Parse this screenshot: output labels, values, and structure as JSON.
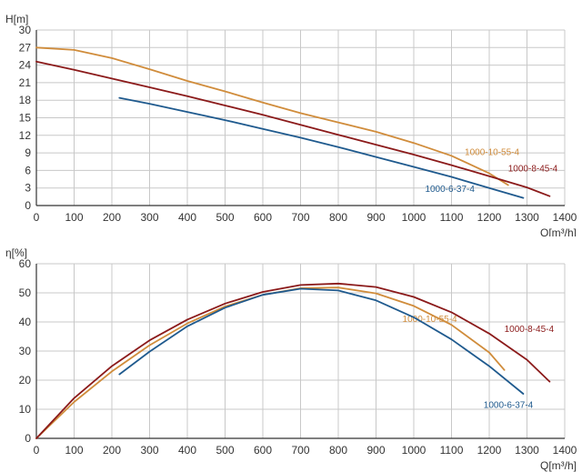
{
  "chart_data": [
    {
      "type": "line",
      "ylabel": "H[m]",
      "xlabel": "Q[m³/h]",
      "xlim": [
        0,
        1400
      ],
      "ylim": [
        0,
        30
      ],
      "xticks": [
        0,
        100,
        200,
        300,
        400,
        500,
        600,
        700,
        800,
        900,
        1000,
        1100,
        1200,
        1300,
        1400
      ],
      "yticks": [
        0,
        3,
        6,
        9,
        12,
        15,
        18,
        21,
        24,
        27,
        30
      ],
      "grid": true,
      "series": [
        {
          "name": "1000-10-55-4",
          "color": "#d08c3b",
          "label_at": [
            1135,
            8.6
          ],
          "points": [
            [
              0,
              27
            ],
            [
              100,
              26.6
            ],
            [
              200,
              25.2
            ],
            [
              300,
              23.3
            ],
            [
              400,
              21.3
            ],
            [
              500,
              19.5
            ],
            [
              600,
              17.6
            ],
            [
              700,
              15.8
            ],
            [
              800,
              14.2
            ],
            [
              900,
              12.6
            ],
            [
              1000,
              10.7
            ],
            [
              1100,
              8.5
            ],
            [
              1200,
              5.5
            ],
            [
              1250,
              3.5
            ]
          ]
        },
        {
          "name": "1000-8-45-4",
          "color": "#8b1a1a",
          "label_at": [
            1250,
            5.8
          ],
          "points": [
            [
              0,
              24.6
            ],
            [
              100,
              23.2
            ],
            [
              200,
              21.7
            ],
            [
              300,
              20.2
            ],
            [
              400,
              18.7
            ],
            [
              500,
              17.1
            ],
            [
              600,
              15.5
            ],
            [
              700,
              13.8
            ],
            [
              800,
              12.1
            ],
            [
              900,
              10.4
            ],
            [
              1000,
              8.7
            ],
            [
              1100,
              6.9
            ],
            [
              1200,
              5.0
            ],
            [
              1300,
              3.1
            ],
            [
              1360,
              1.6
            ]
          ]
        },
        {
          "name": "1000-6-37-4",
          "color": "#1f5a8e",
          "label_at": [
            1030,
            2.3
          ],
          "points": [
            [
              220,
              18.4
            ],
            [
              300,
              17.4
            ],
            [
              400,
              16.0
            ],
            [
              500,
              14.6
            ],
            [
              600,
              13.1
            ],
            [
              700,
              11.6
            ],
            [
              800,
              10.0
            ],
            [
              900,
              8.3
            ],
            [
              1000,
              6.6
            ],
            [
              1100,
              4.9
            ],
            [
              1200,
              3.0
            ],
            [
              1290,
              1.3
            ]
          ]
        }
      ]
    },
    {
      "type": "line",
      "ylabel": "η[%]",
      "xlabel": "Q[m³/h]",
      "xlim": [
        0,
        1400
      ],
      "ylim": [
        0,
        60
      ],
      "xticks": [
        0,
        100,
        200,
        300,
        400,
        500,
        600,
        700,
        800,
        900,
        1000,
        1100,
        1200,
        1300,
        1400
      ],
      "yticks": [
        0,
        10,
        20,
        30,
        40,
        50,
        60
      ],
      "grid": true,
      "series": [
        {
          "name": "1000-10-55-4",
          "color": "#d08c3b",
          "label_at": [
            970,
            40
          ],
          "points": [
            [
              0,
              0
            ],
            [
              100,
              12.5
            ],
            [
              200,
              23
            ],
            [
              300,
              32
            ],
            [
              400,
              39.5
            ],
            [
              500,
              45.3
            ],
            [
              600,
              49.3
            ],
            [
              700,
              51.6
            ],
            [
              800,
              51.8
            ],
            [
              900,
              49.8
            ],
            [
              1000,
              45.5
            ],
            [
              1100,
              39
            ],
            [
              1200,
              29.5
            ],
            [
              1240,
              23.5
            ]
          ]
        },
        {
          "name": "1000-8-45-4",
          "color": "#8b1a1a",
          "label_at": [
            1240,
            36.5
          ],
          "points": [
            [
              0,
              0
            ],
            [
              100,
              13.8
            ],
            [
              200,
              24.8
            ],
            [
              300,
              33.7
            ],
            [
              400,
              40.8
            ],
            [
              500,
              46.3
            ],
            [
              600,
              50.3
            ],
            [
              700,
              52.7
            ],
            [
              800,
              53.2
            ],
            [
              900,
              52.0
            ],
            [
              1000,
              48.6
            ],
            [
              1100,
              43.3
            ],
            [
              1200,
              36.0
            ],
            [
              1300,
              27.0
            ],
            [
              1360,
              19.5
            ]
          ]
        },
        {
          "name": "1000-6-37-4",
          "color": "#1f5a8e",
          "label_at": [
            1185,
            10.5
          ],
          "points": [
            [
              220,
              22
            ],
            [
              300,
              29.8
            ],
            [
              400,
              38.5
            ],
            [
              500,
              44.9
            ],
            [
              600,
              49.3
            ],
            [
              700,
              51.4
            ],
            [
              800,
              50.8
            ],
            [
              900,
              47.4
            ],
            [
              1000,
              41.6
            ],
            [
              1100,
              34.0
            ],
            [
              1200,
              24.8
            ],
            [
              1290,
              15.3
            ]
          ]
        }
      ]
    }
  ]
}
